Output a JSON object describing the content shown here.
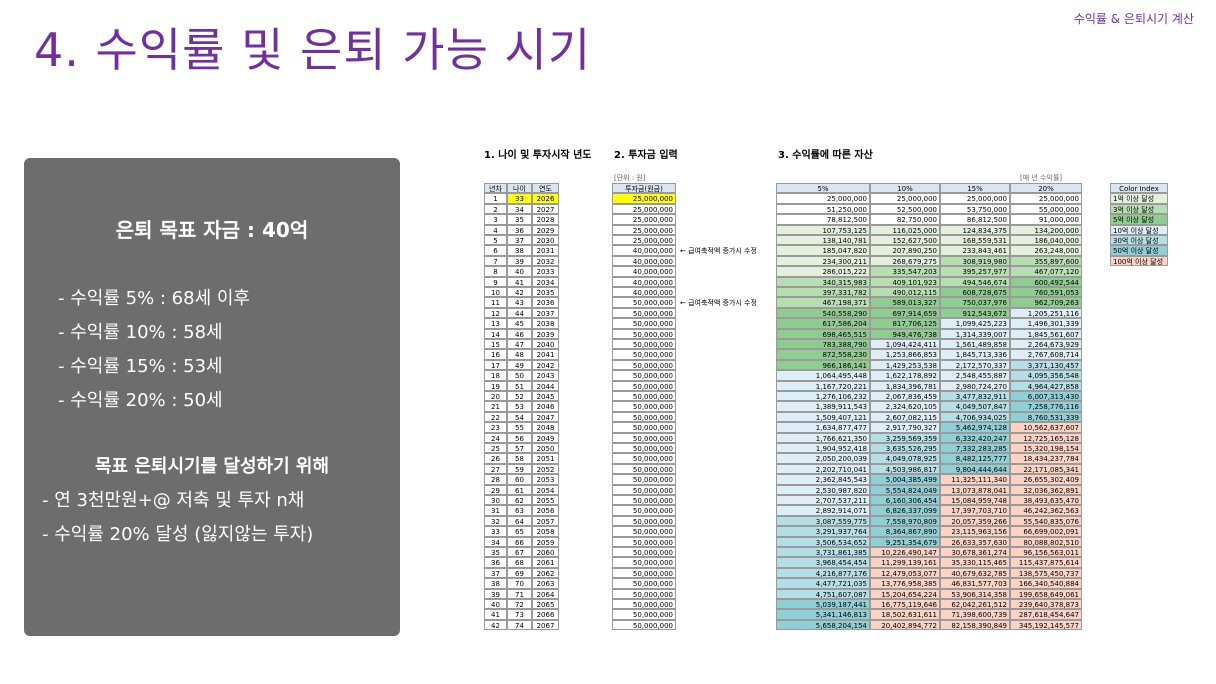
{
  "header": {
    "title": "4. 수익률 및 은퇴 가능 시기",
    "breadcrumb": "수익률 & 은퇴시기 계산"
  },
  "summary": {
    "goal": "은퇴 목표 자금 : 40억",
    "lines": [
      "- 수익률    5% : 68세 이후",
      "- 수익률 10% : 58세",
      "- 수익률 15% : 53세",
      "- 수익률 20% : 50세"
    ],
    "plan_title": "목표 은퇴시기를 달성하기 위해",
    "plan": [
      "- 연 3천만원+@ 저축 및 투자 n채",
      "- 수익률 20% 달성 (잃지않는 투자)"
    ]
  },
  "sheet": {
    "section1": "1. 나이 및 투자시작 년도",
    "section2": "2. 투자금 입력",
    "section3": "3. 수익률에 따른 자산",
    "unit": "[단위 : 원]",
    "rate_note": "[매 년 수익률]",
    "columns": [
      "년차",
      "나이",
      "연도",
      "투자금(원금)",
      "5%",
      "10%",
      "15%",
      "20%"
    ],
    "notes": [
      "← 급여축적액 증가시 수정",
      "← 급여축적액 증가시 수정"
    ],
    "color_index_title": "Color Index",
    "color_index": [
      "1억 이상 달성",
      "3억 이상 달성",
      "5억 이상 달성",
      "10억 이상 달성",
      "30억 이상 달성",
      "50억 이상 달성",
      "100억 이상 달성"
    ],
    "rows": [
      [
        "1",
        "33",
        "2026",
        "25,000,000",
        "25,000,000",
        "25,000,000",
        "25,000,000",
        "25,000,000"
      ],
      [
        "2",
        "34",
        "2027",
        "25,000,000",
        "51,250,000",
        "52,500,000",
        "53,750,000",
        "55,000,000"
      ],
      [
        "3",
        "35",
        "2028",
        "25,000,000",
        "78,812,500",
        "82,750,000",
        "86,812,500",
        "91,000,000"
      ],
      [
        "4",
        "36",
        "2029",
        "25,000,000",
        "107,753,125",
        "116,025,000",
        "124,834,375",
        "134,200,000"
      ],
      [
        "5",
        "37",
        "2030",
        "25,000,000",
        "138,140,781",
        "152,627,500",
        "168,559,531",
        "186,040,000"
      ],
      [
        "6",
        "38",
        "2031",
        "40,000,000",
        "185,047,820",
        "207,890,250",
        "233,843,461",
        "263,248,000"
      ],
      [
        "7",
        "39",
        "2032",
        "40,000,000",
        "234,300,211",
        "268,679,275",
        "308,919,980",
        "355,897,600"
      ],
      [
        "8",
        "40",
        "2033",
        "40,000,000",
        "286,015,222",
        "335,547,203",
        "395,257,977",
        "467,077,120"
      ],
      [
        "9",
        "41",
        "2034",
        "40,000,000",
        "340,315,983",
        "409,101,923",
        "494,546,674",
        "600,492,544"
      ],
      [
        "10",
        "42",
        "2035",
        "40,000,000",
        "397,331,782",
        "490,012,115",
        "608,728,675",
        "760,591,053"
      ],
      [
        "11",
        "43",
        "2036",
        "50,000,000",
        "467,198,371",
        "589,013,327",
        "750,037,976",
        "962,709,263"
      ],
      [
        "12",
        "44",
        "2037",
        "50,000,000",
        "540,558,290",
        "697,914,659",
        "912,543,672",
        "1,205,251,116"
      ],
      [
        "13",
        "45",
        "2038",
        "50,000,000",
        "617,586,204",
        "817,706,125",
        "1,099,425,223",
        "1,496,301,339"
      ],
      [
        "14",
        "46",
        "2039",
        "50,000,000",
        "698,465,515",
        "949,476,738",
        "1,314,339,007",
        "1,845,561,607"
      ],
      [
        "15",
        "47",
        "2040",
        "50,000,000",
        "783,388,790",
        "1,094,424,411",
        "1,561,489,858",
        "2,264,673,929"
      ],
      [
        "16",
        "48",
        "2041",
        "50,000,000",
        "872,558,230",
        "1,253,866,853",
        "1,845,713,336",
        "2,767,608,714"
      ],
      [
        "17",
        "49",
        "2042",
        "50,000,000",
        "966,186,141",
        "1,429,253,538",
        "2,172,570,337",
        "3,371,130,457"
      ],
      [
        "18",
        "50",
        "2043",
        "50,000,000",
        "1,064,495,448",
        "1,622,178,892",
        "2,548,455,887",
        "4,095,356,548"
      ],
      [
        "19",
        "51",
        "2044",
        "50,000,000",
        "1,167,720,221",
        "1,834,396,781",
        "2,980,724,270",
        "4,964,427,858"
      ],
      [
        "20",
        "52",
        "2045",
        "50,000,000",
        "1,276,106,232",
        "2,067,836,459",
        "3,477,832,911",
        "6,007,313,430"
      ],
      [
        "21",
        "53",
        "2046",
        "50,000,000",
        "1,389,911,543",
        "2,324,620,105",
        "4,049,507,847",
        "7,258,776,116"
      ],
      [
        "22",
        "54",
        "2047",
        "50,000,000",
        "1,509,407,121",
        "2,607,082,115",
        "4,706,934,025",
        "8,760,531,339"
      ],
      [
        "23",
        "55",
        "2048",
        "50,000,000",
        "1,634,877,477",
        "2,917,790,327",
        "5,462,974,128",
        "10,562,637,607"
      ],
      [
        "24",
        "56",
        "2049",
        "50,000,000",
        "1,766,621,350",
        "3,259,569,359",
        "6,332,420,247",
        "12,725,165,128"
      ],
      [
        "25",
        "57",
        "2050",
        "50,000,000",
        "1,904,952,418",
        "3,635,526,295",
        "7,332,283,285",
        "15,320,198,154"
      ],
      [
        "26",
        "58",
        "2051",
        "50,000,000",
        "2,050,200,039",
        "4,049,078,925",
        "8,482,125,777",
        "18,434,237,784"
      ],
      [
        "27",
        "59",
        "2052",
        "50,000,000",
        "2,202,710,041",
        "4,503,986,817",
        "9,804,444,644",
        "22,171,085,341"
      ],
      [
        "28",
        "60",
        "2053",
        "50,000,000",
        "2,362,845,543",
        "5,004,385,499",
        "11,325,111,340",
        "26,655,302,409"
      ],
      [
        "29",
        "61",
        "2054",
        "50,000,000",
        "2,530,987,820",
        "5,554,824,049",
        "13,073,878,041",
        "32,036,362,891"
      ],
      [
        "30",
        "62",
        "2055",
        "50,000,000",
        "2,707,537,211",
        "6,160,306,454",
        "15,084,959,748",
        "38,493,635,470"
      ],
      [
        "31",
        "63",
        "2056",
        "50,000,000",
        "2,892,914,071",
        "6,826,337,099",
        "17,397,703,710",
        "46,242,362,563"
      ],
      [
        "32",
        "64",
        "2057",
        "50,000,000",
        "3,087,559,775",
        "7,558,970,809",
        "20,057,359,266",
        "55,540,835,076"
      ],
      [
        "33",
        "65",
        "2058",
        "50,000,000",
        "3,291,937,764",
        "8,364,867,890",
        "23,115,963,156",
        "66,699,002,091"
      ],
      [
        "34",
        "66",
        "2059",
        "50,000,000",
        "3,506,534,652",
        "9,251,354,679",
        "26,633,357,630",
        "80,088,802,510"
      ],
      [
        "35",
        "67",
        "2060",
        "50,000,000",
        "3,731,861,385",
        "10,226,490,147",
        "30,678,361,274",
        "96,156,563,011"
      ],
      [
        "36",
        "68",
        "2061",
        "50,000,000",
        "3,968,454,454",
        "11,299,139,161",
        "35,330,115,465",
        "115,437,875,614"
      ],
      [
        "37",
        "69",
        "2062",
        "50,000,000",
        "4,216,877,176",
        "12,479,053,077",
        "40,679,632,785",
        "138,575,450,737"
      ],
      [
        "38",
        "70",
        "2063",
        "50,000,000",
        "4,477,721,035",
        "13,776,958,385",
        "46,831,577,703",
        "166,340,540,884"
      ],
      [
        "39",
        "71",
        "2064",
        "50,000,000",
        "4,751,607,087",
        "15,204,654,224",
        "53,906,314,358",
        "199,658,649,061"
      ],
      [
        "40",
        "72",
        "2065",
        "50,000,000",
        "5,039,187,441",
        "16,775,119,646",
        "62,042,261,512",
        "239,640,378,873"
      ],
      [
        "41",
        "73",
        "2066",
        "50,000,000",
        "5,341,146,813",
        "18,502,631,611",
        "71,398,600,739",
        "287,618,454,647"
      ],
      [
        "42",
        "74",
        "2067",
        "50,000,000",
        "5,658,204,154",
        "20,402,894,772",
        "82,158,390,849",
        "345,192,145,577"
      ]
    ]
  }
}
